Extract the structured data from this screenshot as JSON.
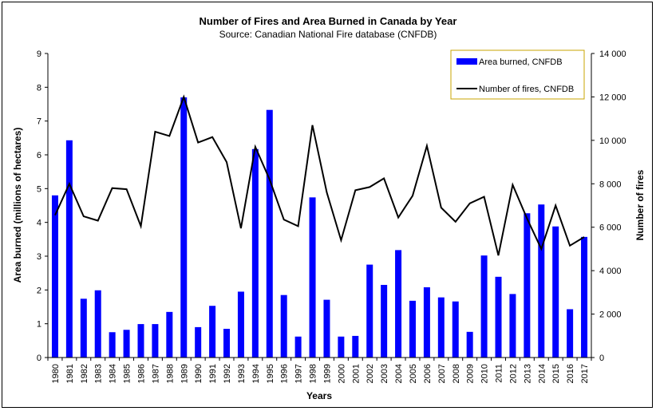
{
  "chart_data": {
    "type": "bar",
    "title": "Number of Fires and Area Burned in Canada by Year",
    "subtitle": "Source: Canadian National Fire database (CNFDB)",
    "xlabel": "Years",
    "ylabel": "Area burned (millions of hectares)",
    "y2label": "Number of fires",
    "categories": [
      "1980",
      "1981",
      "1982",
      "1983",
      "1984",
      "1985",
      "1986",
      "1987",
      "1988",
      "1989",
      "1990",
      "1991",
      "1992",
      "1993",
      "1994",
      "1995",
      "1996",
      "1997",
      "1998",
      "1999",
      "2000",
      "2001",
      "2002",
      "2003",
      "2004",
      "2005",
      "2006",
      "2007",
      "2008",
      "2009",
      "2010",
      "2011",
      "2012",
      "2013",
      "2014",
      "2015",
      "2016",
      "2017"
    ],
    "ylim": [
      0,
      9
    ],
    "y2lim": [
      0,
      14000
    ],
    "yticks": [
      "0",
      "1",
      "2",
      "3",
      "4",
      "5",
      "6",
      "7",
      "8",
      "9"
    ],
    "y2ticks": [
      "0",
      "2 000",
      "4 000",
      "6 000",
      "8 000",
      "10 000",
      "12 000",
      "14 000"
    ],
    "series": [
      {
        "name": "Area burned, CNFDB",
        "type": "bar",
        "axis": "left",
        "color": "#0000ff",
        "values": [
          4.8,
          6.43,
          1.74,
          1.99,
          0.75,
          0.82,
          0.99,
          0.99,
          1.35,
          7.7,
          0.9,
          1.53,
          0.85,
          1.95,
          6.17,
          7.33,
          1.85,
          0.62,
          4.74,
          1.71,
          0.62,
          0.64,
          2.75,
          2.15,
          3.18,
          1.68,
          2.08,
          1.78,
          1.66,
          0.76,
          3.02,
          2.39,
          1.88,
          4.27,
          4.53,
          3.88,
          1.43,
          3.57
        ]
      },
      {
        "name": "Number of fires, CNFDB",
        "type": "line",
        "axis": "right",
        "color": "#000000",
        "values": [
          6550,
          8000,
          6500,
          6300,
          7800,
          7750,
          6050,
          10400,
          10200,
          12000,
          9900,
          10150,
          9000,
          5950,
          9700,
          8200,
          6350,
          6050,
          10700,
          7600,
          5400,
          7700,
          7850,
          8250,
          6450,
          7450,
          9750,
          6900,
          6250,
          7100,
          7400,
          4700,
          7950,
          6400,
          5000,
          7000,
          5150,
          5550
        ]
      }
    ],
    "legend_position": "top-right",
    "grid": false
  }
}
